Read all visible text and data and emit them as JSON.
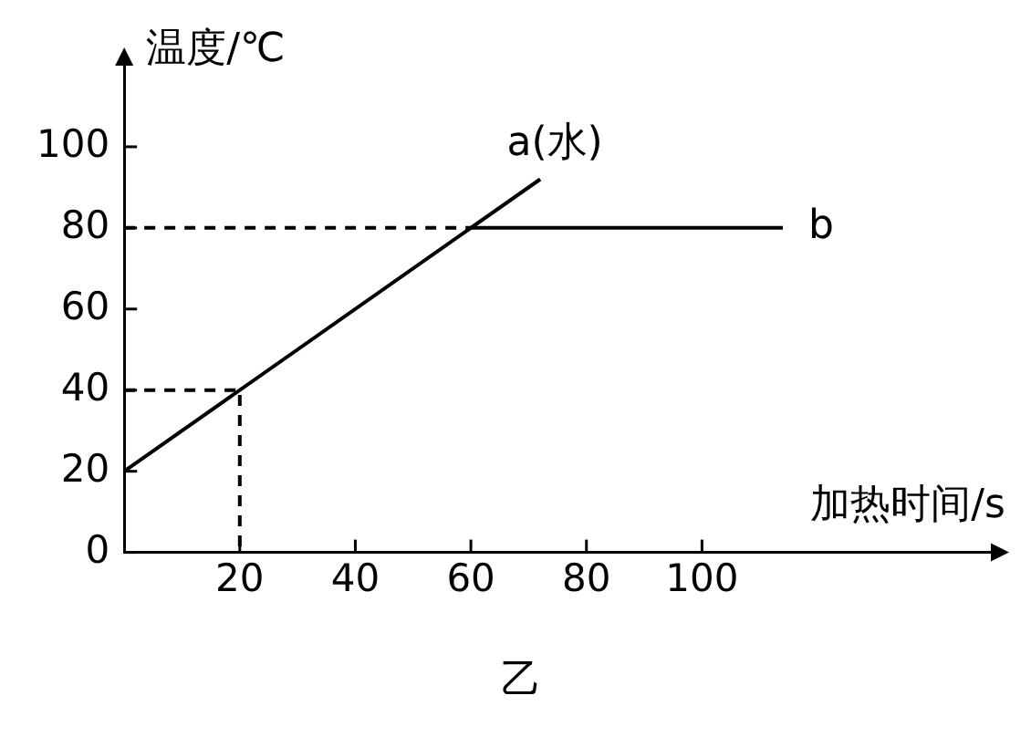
{
  "chart_data": {
    "type": "line",
    "xlabel": "加热时间/s",
    "ylabel": "温度/℃",
    "xlim": [
      0,
      150
    ],
    "ylim": [
      0,
      120
    ],
    "xticks": [
      20,
      40,
      60,
      80,
      100
    ],
    "yticks": [
      0,
      20,
      40,
      60,
      80,
      100
    ],
    "grid": false,
    "legend": false,
    "marker": "none",
    "series": [
      {
        "name": "a(水)",
        "color": "#000000",
        "x": [
          0,
          72
        ],
        "values": [
          20,
          92
        ]
      },
      {
        "name": "b",
        "color": "#000000",
        "x": [
          60,
          114
        ],
        "values": [
          80,
          80
        ]
      },
      {
        "color": "#000000",
        "x": [
          0,
          60
        ],
        "values": [
          80,
          80
        ],
        "line_style": "dashed"
      },
      {
        "color": "#000000",
        "x": [
          0,
          20,
          20
        ],
        "values": [
          40,
          40,
          0
        ],
        "line_style": "dashed"
      }
    ],
    "annotations": [
      "乙"
    ]
  }
}
